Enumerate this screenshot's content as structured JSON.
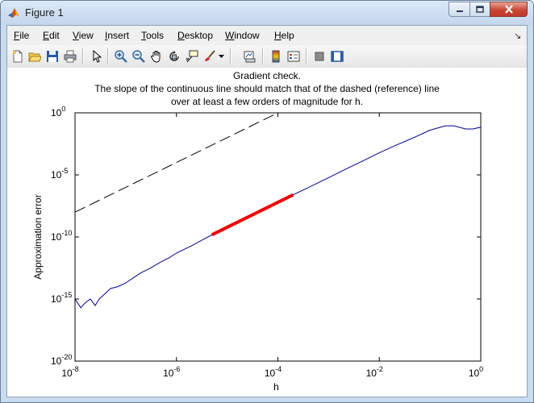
{
  "window": {
    "title": "Figure 1",
    "icons": {
      "app": "matlab-icon",
      "minimize": "minimize-icon",
      "maximize": "maximize-icon",
      "close": "close-icon"
    }
  },
  "menu": {
    "items": [
      {
        "label": "File",
        "underline": "F"
      },
      {
        "label": "Edit",
        "underline": "E"
      },
      {
        "label": "View",
        "underline": "V"
      },
      {
        "label": "Insert",
        "underline": "I"
      },
      {
        "label": "Tools",
        "underline": "T"
      },
      {
        "label": "Desktop",
        "underline": "D"
      },
      {
        "label": "Window",
        "underline": "W"
      },
      {
        "label": "Help",
        "underline": "H"
      }
    ],
    "dock_icon": "dock-arrow-icon"
  },
  "toolbar": {
    "buttons": [
      "new-figure-icon",
      "open-file-icon",
      "save-icon",
      "print-icon",
      "select-arrow-icon",
      "zoom-in-icon",
      "zoom-out-icon",
      "pan-hand-icon",
      "rotate-3d-icon",
      "data-cursor-icon",
      "brush-icon",
      "brush-dropdown-icon",
      "link-plot-icon",
      "colorbar-icon",
      "legend-icon",
      "hide-plot-tools-icon",
      "show-plot-tools-icon"
    ]
  },
  "chart_data": {
    "type": "line",
    "title": [
      "Gradient check.",
      "The slope of the continuous line should match that of the dashed (reference) line",
      "over at least a few orders of magnitude for h."
    ],
    "xlabel": "h",
    "ylabel": "Approximation error",
    "xscale": "log",
    "yscale": "log",
    "xlim": [
      1e-08,
      1
    ],
    "ylim": [
      1e-20,
      1
    ],
    "xticks": [
      {
        "base": "10",
        "exp": "-8"
      },
      {
        "base": "10",
        "exp": "-6"
      },
      {
        "base": "10",
        "exp": "-4"
      },
      {
        "base": "10",
        "exp": "-2"
      },
      {
        "base": "10",
        "exp": "0"
      }
    ],
    "yticks": [
      {
        "base": "10",
        "exp": "-20"
      },
      {
        "base": "10",
        "exp": "-15"
      },
      {
        "base": "10",
        "exp": "-10"
      },
      {
        "base": "10",
        "exp": "-5"
      },
      {
        "base": "10",
        "exp": "0"
      }
    ],
    "grid": false,
    "colors": {
      "main": "#00008b",
      "highlight": "#ee0000",
      "reference": "#000000"
    },
    "series": [
      {
        "style": "solid",
        "x": [
          1e-08,
          1.3e-08,
          1.6e-08,
          2e-08,
          2.5e-08,
          3e-08,
          4e-08,
          5e-08,
          7e-08,
          1e-07,
          1.5e-07,
          2e-07,
          3e-07,
          5e-07,
          7e-07,
          1e-06,
          2e-06,
          5e-06,
          1e-05,
          2e-05,
          5e-05,
          0.0001,
          0.0002,
          0.0005,
          0.001,
          0.002,
          0.005,
          0.01,
          0.02,
          0.05,
          0.1,
          0.2,
          0.3,
          0.5,
          0.7,
          1
        ],
        "y": [
          1e-15,
          2e-16,
          5e-16,
          1e-15,
          3e-16,
          1e-15,
          3e-15,
          7e-15,
          1e-14,
          2e-14,
          6e-14,
          1.3e-13,
          3e-13,
          1e-12,
          2e-12,
          5e-12,
          2e-11,
          1.5e-10,
          6e-10,
          2.5e-09,
          1.5e-08,
          6e-08,
          2.5e-07,
          1.5e-06,
          6e-06,
          2.5e-05,
          0.00015,
          0.0006,
          0.0022,
          0.011,
          0.04,
          0.09,
          0.09,
          0.05,
          0.05,
          0.07
        ]
      },
      {
        "style": "thick",
        "x": [
          5e-06,
          0.0002
        ],
        "y": [
          1.5e-10,
          2.5e-07
        ]
      },
      {
        "style": "dashed",
        "x": [
          1e-08,
          0.0001
        ],
        "y": [
          1e-08,
          1
        ]
      }
    ]
  }
}
